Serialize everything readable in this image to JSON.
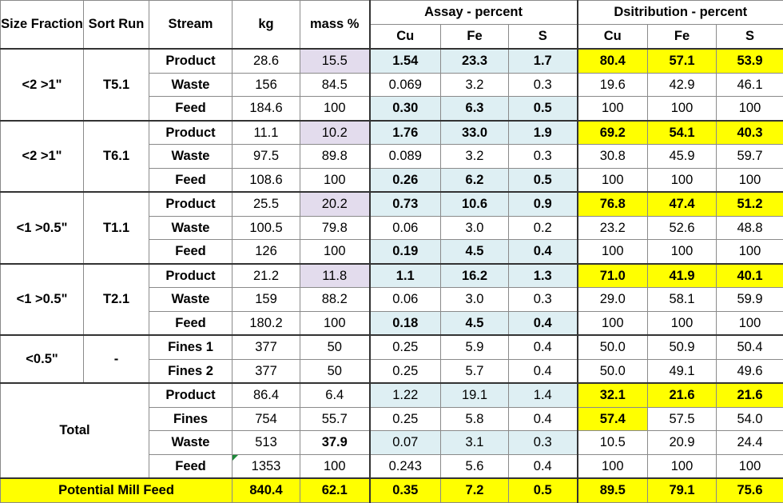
{
  "headers": {
    "size_fraction": "Size Fraction",
    "sort_run": "Sort Run",
    "stream": "Stream",
    "kg": "kg",
    "mass_pct": "mass %",
    "assay_group": "Assay - percent",
    "dist_group": "Dsitribution - percent",
    "assay_cols": [
      "Cu",
      "Fe",
      "S"
    ],
    "dist_cols": [
      "Cu",
      "Fe",
      "S"
    ]
  },
  "groups": [
    {
      "size": "<2 >1\"",
      "run": "T5.1",
      "rows": [
        {
          "stream": "Product",
          "kg": "28.6",
          "mass": "15.5",
          "cu": "1.54",
          "fe": "23.3",
          "s": "1.7",
          "dcu": "80.4",
          "dfe": "57.1",
          "ds": "53.9"
        },
        {
          "stream": "Waste",
          "kg": "156",
          "mass": "84.5",
          "cu": "0.069",
          "fe": "3.2",
          "s": "0.3",
          "dcu": "19.6",
          "dfe": "42.9",
          "ds": "46.1"
        },
        {
          "stream": "Feed",
          "kg": "184.6",
          "mass": "100",
          "cu": "0.30",
          "fe": "6.3",
          "s": "0.5",
          "dcu": "100",
          "dfe": "100",
          "ds": "100"
        }
      ]
    },
    {
      "size": "<2 >1\"",
      "run": "T6.1",
      "rows": [
        {
          "stream": "Product",
          "kg": "11.1",
          "mass": "10.2",
          "cu": "1.76",
          "fe": "33.0",
          "s": "1.9",
          "dcu": "69.2",
          "dfe": "54.1",
          "ds": "40.3"
        },
        {
          "stream": "Waste",
          "kg": "97.5",
          "mass": "89.8",
          "cu": "0.089",
          "fe": "3.2",
          "s": "0.3",
          "dcu": "30.8",
          "dfe": "45.9",
          "ds": "59.7"
        },
        {
          "stream": "Feed",
          "kg": "108.6",
          "mass": "100",
          "cu": "0.26",
          "fe": "6.2",
          "s": "0.5",
          "dcu": "100",
          "dfe": "100",
          "ds": "100"
        }
      ]
    },
    {
      "size": "<1 >0.5\"",
      "run": "T1.1",
      "rows": [
        {
          "stream": "Product",
          "kg": "25.5",
          "mass": "20.2",
          "cu": "0.73",
          "fe": "10.6",
          "s": "0.9",
          "dcu": "76.8",
          "dfe": "47.4",
          "ds": "51.2"
        },
        {
          "stream": "Waste",
          "kg": "100.5",
          "mass": "79.8",
          "cu": "0.06",
          "fe": "3.0",
          "s": "0.2",
          "dcu": "23.2",
          "dfe": "52.6",
          "ds": "48.8"
        },
        {
          "stream": "Feed",
          "kg": "126",
          "mass": "100",
          "cu": "0.19",
          "fe": "4.5",
          "s": "0.4",
          "dcu": "100",
          "dfe": "100",
          "ds": "100"
        }
      ]
    },
    {
      "size": "<1 >0.5\"",
      "run": "T2.1",
      "rows": [
        {
          "stream": "Product",
          "kg": "21.2",
          "mass": "11.8",
          "cu": "1.1",
          "fe": "16.2",
          "s": "1.3",
          "dcu": "71.0",
          "dfe": "41.9",
          "ds": "40.1"
        },
        {
          "stream": "Waste",
          "kg": "159",
          "mass": "88.2",
          "cu": "0.06",
          "fe": "3.0",
          "s": "0.3",
          "dcu": "29.0",
          "dfe": "58.1",
          "ds": "59.9"
        },
        {
          "stream": "Feed",
          "kg": "180.2",
          "mass": "100",
          "cu": "0.18",
          "fe": "4.5",
          "s": "0.4",
          "dcu": "100",
          "dfe": "100",
          "ds": "100"
        }
      ]
    },
    {
      "size": "<0.5\"",
      "run": "-",
      "rows": [
        {
          "stream": "Fines 1",
          "kg": "377",
          "mass": "50",
          "cu": "0.25",
          "fe": "5.9",
          "s": "0.4",
          "dcu": "50.0",
          "dfe": "50.9",
          "ds": "50.4"
        },
        {
          "stream": "Fines 2",
          "kg": "377",
          "mass": "50",
          "cu": "0.25",
          "fe": "5.7",
          "s": "0.4",
          "dcu": "50.0",
          "dfe": "49.1",
          "ds": "49.6"
        }
      ]
    },
    {
      "size": "Total",
      "run": "",
      "rows": [
        {
          "stream": "Product",
          "kg": "86.4",
          "mass": "6.4",
          "cu": "1.22",
          "fe": "19.1",
          "s": "1.4",
          "dcu": "32.1",
          "dfe": "21.6",
          "ds": "21.6"
        },
        {
          "stream": "Fines",
          "kg": "754",
          "mass": "55.7",
          "cu": "0.25",
          "fe": "5.8",
          "s": "0.4",
          "dcu": "57.4",
          "dfe": "57.5",
          "ds": "54.0"
        },
        {
          "stream": "Waste",
          "kg": "513",
          "mass": "37.9",
          "cu": "0.07",
          "fe": "3.1",
          "s": "0.3",
          "dcu": "10.5",
          "dfe": "20.9",
          "ds": "24.4"
        },
        {
          "stream": "Feed",
          "kg": "1353",
          "mass": "100",
          "cu": "0.243",
          "fe": "5.6",
          "s": "0.4",
          "dcu": "100",
          "dfe": "100",
          "ds": "100"
        }
      ]
    }
  ],
  "mill": {
    "label": "Potential Mill Feed",
    "kg": "840.4",
    "mass": "62.1",
    "cu": "0.35",
    "fe": "7.2",
    "s": "0.5",
    "dcu": "89.5",
    "dfe": "79.1",
    "ds": "75.6"
  },
  "colors": {
    "highlight_yellow": "#ffff00",
    "assay_blue": "#deeff3",
    "mass_lavender": "#e3dced"
  }
}
